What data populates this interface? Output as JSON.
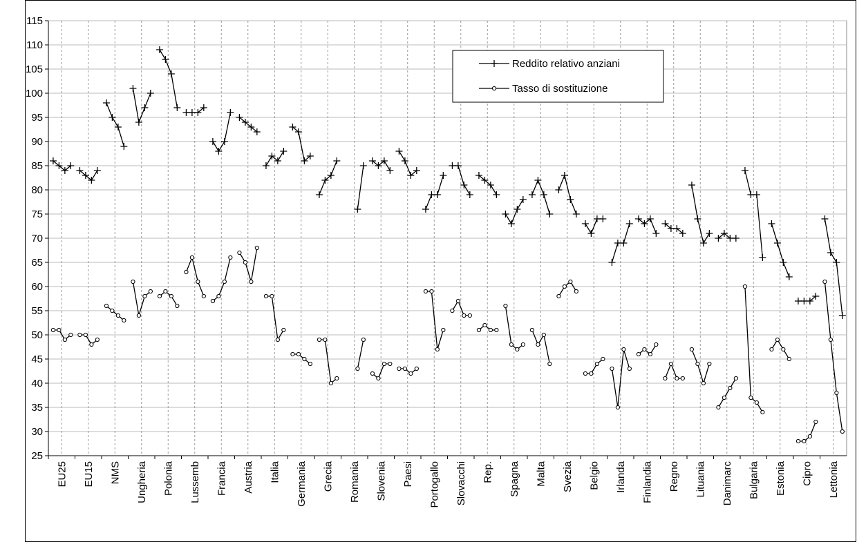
{
  "chart_data": {
    "type": "line",
    "categories": [
      "EU25",
      "EU15",
      "NMS",
      "Ungheria",
      "Polonia",
      "Lussemb",
      "Francia",
      "Austria",
      "Italia",
      "Germania",
      "Grecia",
      "Romania",
      "Slovenia",
      "Paesi",
      "Portogallo",
      "Slovacchi",
      "Rep.",
      "Spagna",
      "Malta",
      "Svezia",
      "Belgio",
      "Irlanda",
      "Finlandia",
      "Regno",
      "Lituania",
      "Danimarc",
      "Bulgaria",
      "Estonia",
      "Cipro",
      "Lettonia"
    ],
    "series": [
      {
        "name": "Reddito relativo anziani",
        "color": "#000000",
        "marker": "plus",
        "values": [
          [
            86,
            85,
            84,
            85
          ],
          [
            84,
            83,
            82,
            84
          ],
          [
            98,
            95,
            93,
            89
          ],
          [
            101,
            94,
            97,
            100
          ],
          [
            109,
            107,
            104,
            97
          ],
          [
            96,
            96,
            96,
            97
          ],
          [
            90,
            88,
            90,
            96
          ],
          [
            95,
            94,
            93,
            92
          ],
          [
            85,
            87,
            86,
            88
          ],
          [
            93,
            92,
            86,
            87
          ],
          [
            79,
            82,
            83,
            86
          ],
          [
            null,
            null,
            76,
            85
          ],
          [
            86,
            85,
            86,
            84
          ],
          [
            88,
            86,
            83,
            84
          ],
          [
            76,
            79,
            79,
            83
          ],
          [
            85,
            85,
            81,
            79
          ],
          [
            83,
            82,
            81,
            79
          ],
          [
            75,
            73,
            76,
            78
          ],
          [
            79,
            82,
            79,
            75
          ],
          [
            80,
            83,
            78,
            75
          ],
          [
            73,
            71,
            74,
            74
          ],
          [
            65,
            69,
            69,
            73
          ],
          [
            74,
            73,
            74,
            71
          ],
          [
            73,
            72,
            72,
            71
          ],
          [
            81,
            74,
            69,
            71
          ],
          [
            70,
            71,
            70,
            70
          ],
          [
            84,
            79,
            79,
            66
          ],
          [
            73,
            69,
            65,
            62
          ],
          [
            57,
            57,
            57,
            58
          ],
          [
            74,
            67,
            65,
            54
          ]
        ]
      },
      {
        "name": "Tasso di sostituzione",
        "color": "#000000",
        "marker": "circle",
        "values": [
          [
            51,
            51,
            49,
            50
          ],
          [
            50,
            50,
            48,
            49
          ],
          [
            56,
            55,
            54,
            53
          ],
          [
            61,
            54,
            58,
            59
          ],
          [
            58,
            59,
            58,
            56
          ],
          [
            63,
            66,
            61,
            58
          ],
          [
            57,
            58,
            61,
            66
          ],
          [
            67,
            65,
            61,
            68
          ],
          [
            58,
            58,
            49,
            51
          ],
          [
            46,
            46,
            45,
            44
          ],
          [
            49,
            49,
            40,
            41
          ],
          [
            null,
            null,
            43,
            49
          ],
          [
            42,
            41,
            44,
            44
          ],
          [
            43,
            43,
            42,
            43
          ],
          [
            59,
            59,
            47,
            51
          ],
          [
            55,
            57,
            54,
            54
          ],
          [
            51,
            52,
            51,
            51
          ],
          [
            56,
            48,
            47,
            48
          ],
          [
            51,
            48,
            50,
            44
          ],
          [
            58,
            60,
            61,
            59
          ],
          [
            42,
            42,
            44,
            45
          ],
          [
            43,
            35,
            47,
            43
          ],
          [
            46,
            47,
            46,
            48
          ],
          [
            41,
            44,
            41,
            41
          ],
          [
            47,
            44,
            40,
            44
          ],
          [
            35,
            37,
            39,
            41
          ],
          [
            60,
            37,
            36,
            34
          ],
          [
            47,
            49,
            47,
            45
          ],
          [
            28,
            28,
            29,
            32
          ],
          [
            61,
            49,
            38,
            30
          ]
        ]
      }
    ],
    "ylim": [
      25,
      115
    ],
    "yticks": [
      25,
      30,
      35,
      40,
      45,
      50,
      55,
      60,
      65,
      70,
      75,
      80,
      85,
      90,
      95,
      100,
      105,
      110,
      115
    ],
    "grid": true,
    "legend": "upper right"
  }
}
